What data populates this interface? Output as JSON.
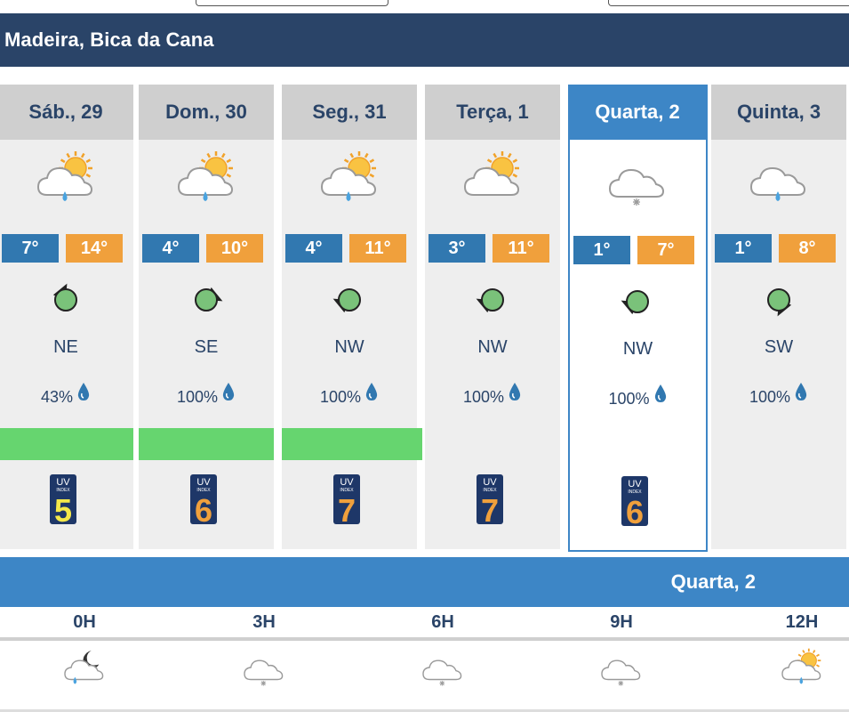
{
  "location": "Madeira, Bica da Cana",
  "days": [
    {
      "label": "Sáb., 29",
      "icon": "sun-cloud-rain-icon",
      "min": "7°",
      "max": "14°",
      "wind": "NE",
      "precip": "43%",
      "uv": "5",
      "uv_color": "#f4e84a",
      "green_bar": true,
      "selected": false
    },
    {
      "label": "Dom., 30",
      "icon": "sun-cloud-rain-icon",
      "min": "4°",
      "max": "10°",
      "wind": "SE",
      "precip": "100%",
      "uv": "6",
      "uv_color": "#f0a03c",
      "green_bar": true,
      "selected": false
    },
    {
      "label": "Seg., 31",
      "icon": "sun-cloud-rain-icon",
      "min": "4°",
      "max": "11°",
      "wind": "NW",
      "precip": "100%",
      "uv": "7",
      "uv_color": "#f0a03c",
      "green_bar": true,
      "selected": false
    },
    {
      "label": "Terça, 1",
      "icon": "sun-cloud-icon",
      "min": "3°",
      "max": "11°",
      "wind": "NW",
      "precip": "100%",
      "uv": "7",
      "uv_color": "#f0a03c",
      "green_bar": false,
      "selected": false
    },
    {
      "label": "Quarta, 2",
      "icon": "cloud-snow-icon",
      "min": "1°",
      "max": "7°",
      "wind": "NW",
      "precip": "100%",
      "uv": "6",
      "uv_color": "#f0a03c",
      "green_bar": false,
      "selected": true
    },
    {
      "label": "Quinta, 3",
      "icon": "cloud-rain-icon",
      "min": "1°",
      "max": "8°",
      "wind": "SW",
      "precip": "100%",
      "uv": "",
      "uv_color": "",
      "green_bar": false,
      "selected": false
    }
  ],
  "uv_text": {
    "top": "UV",
    "mid": "INDEX"
  },
  "selected_day_label": "Quarta, 2",
  "hours": [
    {
      "label": "0H",
      "icon": "moon-cloud-rain-icon"
    },
    {
      "label": "3H",
      "icon": "cloud-snow-icon"
    },
    {
      "label": "6H",
      "icon": "cloud-snow-icon"
    },
    {
      "label": "9H",
      "icon": "cloud-snow-icon"
    },
    {
      "label": "12H",
      "icon": "sun-cloud-rain-icon"
    }
  ],
  "colors": {
    "header": "#2a4468",
    "accent": "#3d86c6",
    "min_temp": "#3178b0",
    "max_temp": "#f0a03c",
    "precip_bar": "#66d56f"
  }
}
